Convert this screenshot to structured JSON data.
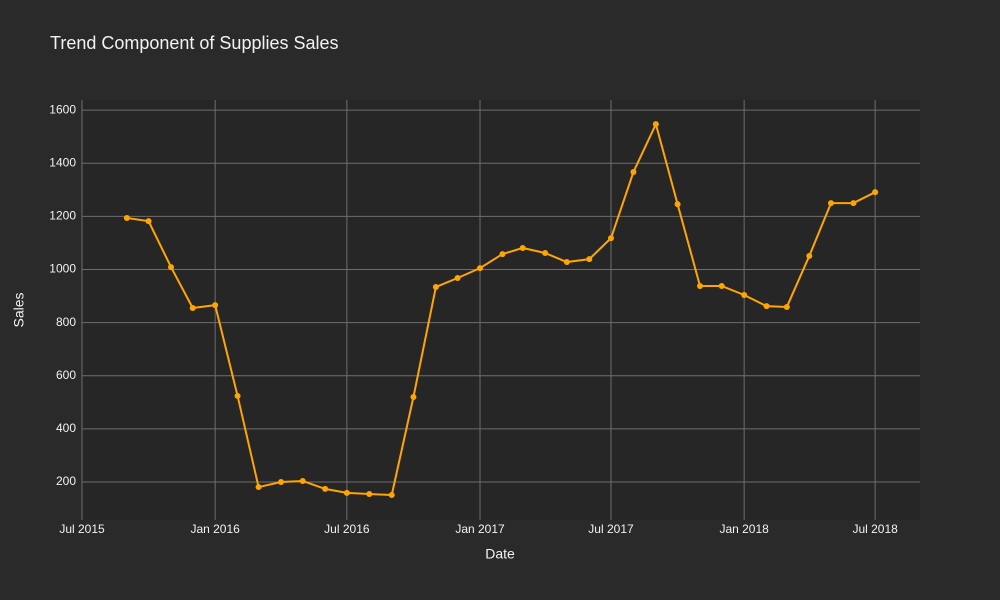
{
  "chart_data": {
    "type": "line",
    "title": "Trend Component of Supplies Sales",
    "x_label": "Date",
    "y_label": "Sales",
    "x": [
      "2015-09",
      "2015-10",
      "2015-11",
      "2015-12",
      "2016-01",
      "2016-02",
      "2016-03",
      "2016-04",
      "2016-05",
      "2016-06",
      "2016-07",
      "2016-08",
      "2016-09",
      "2016-10",
      "2016-11",
      "2016-12",
      "2017-01",
      "2017-02",
      "2017-03",
      "2017-04",
      "2017-05",
      "2017-06",
      "2017-07",
      "2017-08",
      "2017-09",
      "2017-10",
      "2017-11",
      "2017-12",
      "2018-01",
      "2018-02",
      "2018-03",
      "2018-04",
      "2018-05",
      "2018-06",
      "2018-07"
    ],
    "series": [
      {
        "name": "Sales",
        "color": "#ffa500",
        "values": [
          1194,
          1182,
          1009,
          855,
          866,
          524,
          181,
          200,
          204,
          174,
          159,
          155,
          151,
          520,
          934,
          968,
          1005,
          1058,
          1081,
          1062,
          1028,
          1039,
          1118,
          1367,
          1547,
          1246,
          938,
          938,
          904,
          862,
          859,
          1051,
          1250,
          1250,
          1291
        ]
      }
    ],
    "xlim": [
      "2015-07",
      "2018-09"
    ],
    "xticks": [
      {
        "value": "2015-07",
        "label": "Jul 2015"
      },
      {
        "value": "2016-01",
        "label": "Jan 2016"
      },
      {
        "value": "2016-07",
        "label": "Jul 2016"
      },
      {
        "value": "2017-01",
        "label": "Jan 2017"
      },
      {
        "value": "2017-07",
        "label": "Jul 2017"
      },
      {
        "value": "2018-01",
        "label": "Jan 2018"
      },
      {
        "value": "2018-07",
        "label": "Jul 2018"
      }
    ],
    "ylim": [
      57,
      1638
    ],
    "yticks": [
      200,
      400,
      600,
      800,
      1000,
      1200,
      1400,
      1600
    ],
    "grid": true
  }
}
